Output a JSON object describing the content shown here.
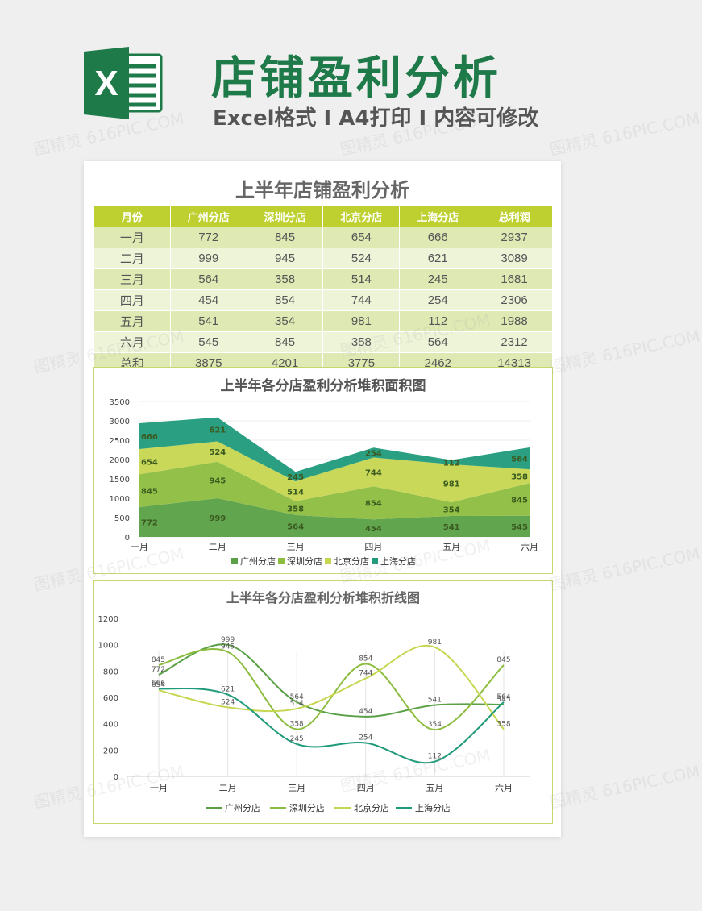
{
  "header": {
    "title": "店铺盈利分析",
    "subtitle": "Excel格式 I A4打印 I 内容可修改",
    "logo_letter": "X"
  },
  "watermark": "图精灵 616PIC.COM",
  "table": {
    "title": "上半年店铺盈利分析",
    "columns": [
      "月份",
      "广州分店",
      "深圳分店",
      "北京分店",
      "上海分店",
      "总利润"
    ],
    "rows": [
      [
        "一月",
        "772",
        "845",
        "654",
        "666",
        "2937"
      ],
      [
        "二月",
        "999",
        "945",
        "524",
        "621",
        "3089"
      ],
      [
        "三月",
        "564",
        "358",
        "514",
        "245",
        "1681"
      ],
      [
        "四月",
        "454",
        "854",
        "744",
        "254",
        "2306"
      ],
      [
        "五月",
        "541",
        "354",
        "981",
        "112",
        "1988"
      ],
      [
        "六月",
        "545",
        "845",
        "358",
        "564",
        "2312"
      ],
      [
        "总和",
        "3875",
        "4201",
        "3775",
        "2462",
        "14313"
      ]
    ]
  },
  "colors": {
    "guangzhou": "#5aa046",
    "shenzhen": "#8dbd3e",
    "beijing": "#c6d650",
    "shanghai": "#1f9a7a",
    "title_green": "#1e7a48",
    "table_header": "#bdd02f"
  },
  "chart_data": [
    {
      "type": "area",
      "stacked": true,
      "title": "上半年各分店盈利分析堆积面积图",
      "categories": [
        "一月",
        "二月",
        "三月",
        "四月",
        "五月",
        "六月"
      ],
      "ylim": [
        0,
        3500
      ],
      "yticks": [
        "0",
        "500",
        "1000",
        "1500",
        "2000",
        "2500",
        "3000",
        "3500"
      ],
      "legend_position": "bottom",
      "series": [
        {
          "name": "广州分店",
          "values": [
            772,
            999,
            564,
            454,
            541,
            545
          ]
        },
        {
          "name": "深圳分店",
          "values": [
            845,
            945,
            358,
            854,
            354,
            845
          ]
        },
        {
          "name": "北京分店",
          "values": [
            654,
            524,
            514,
            744,
            981,
            358
          ]
        },
        {
          "name": "上海分店",
          "values": [
            666,
            621,
            245,
            254,
            112,
            564
          ]
        }
      ]
    },
    {
      "type": "line",
      "smooth": true,
      "title": "上半年各分店盈利分析堆积折线图",
      "categories": [
        "一月",
        "二月",
        "三月",
        "四月",
        "五月",
        "六月"
      ],
      "ylim": [
        0,
        1200
      ],
      "yticks": [
        "0",
        "200",
        "400",
        "600",
        "800",
        "1000",
        "1200"
      ],
      "legend_position": "bottom",
      "series": [
        {
          "name": "广州分店",
          "values": [
            772,
            999,
            564,
            454,
            541,
            545
          ]
        },
        {
          "name": "深圳分店",
          "values": [
            845,
            945,
            358,
            854,
            354,
            845
          ]
        },
        {
          "name": "北京分店",
          "values": [
            654,
            524,
            514,
            744,
            981,
            358
          ]
        },
        {
          "name": "上海分店",
          "values": [
            666,
            621,
            245,
            254,
            112,
            564
          ]
        }
      ]
    }
  ]
}
